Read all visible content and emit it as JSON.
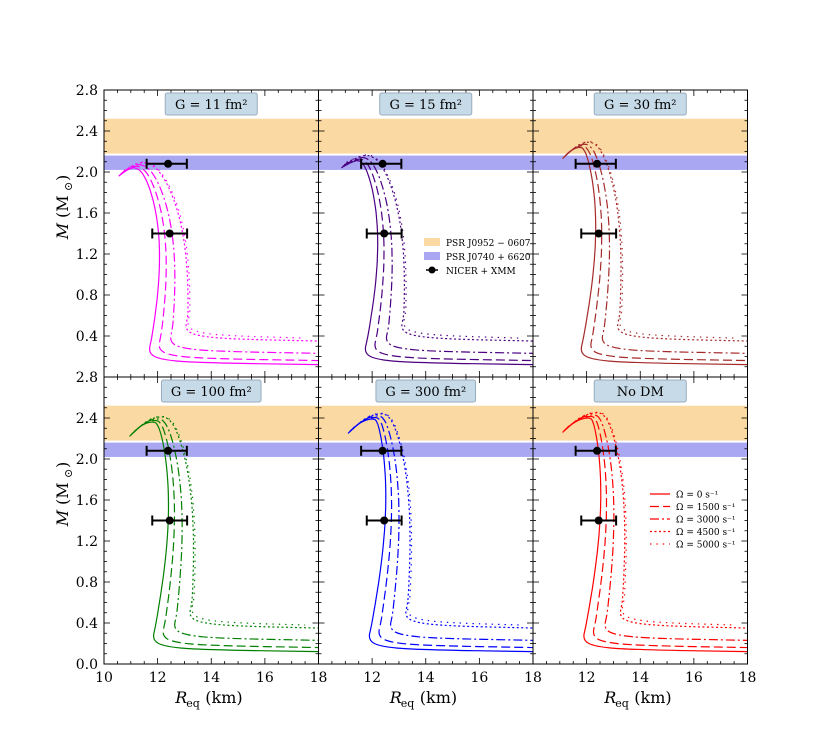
{
  "chart_data": {
    "type": "line",
    "xlim": [
      10,
      18
    ],
    "ylim": [
      0.0,
      2.8
    ],
    "xlabel": "R_eq (km)",
    "ylabel": "M (M_⊙)",
    "x_ticks": [
      10,
      12,
      14,
      16,
      18
    ],
    "y_ticks": [
      0.0,
      0.4,
      0.8,
      1.2,
      1.6,
      2.0,
      2.4,
      2.8
    ],
    "bands": [
      {
        "name": "PSR J0952 − 0607",
        "range": [
          2.18,
          2.52
        ],
        "color": "#fbd9a2"
      },
      {
        "name": "PSR J0740 + 6620",
        "range": [
          2.02,
          2.16
        ],
        "color": "#a9a7f2"
      }
    ],
    "nicer_points": [
      {
        "name": "NICER + XMM",
        "r": 12.39,
        "r_err": [
          0.8,
          0.7
        ],
        "m": 2.08
      },
      {
        "name": "NICER + XMM",
        "r": 12.45,
        "r_err": [
          0.65,
          0.65
        ],
        "m": 1.4
      }
    ],
    "legend_bands": [
      {
        "label": "PSR J0952 − 0607"
      },
      {
        "label": "PSR J0740 + 6620"
      },
      {
        "label": "NICER + XMM"
      }
    ],
    "legend_rotation": [
      {
        "label": "Ω = 0 s⁻¹",
        "omega": 0
      },
      {
        "label": "Ω = 1500 s⁻¹",
        "omega": 1500
      },
      {
        "label": "Ω = 3000 s⁻¹",
        "omega": 3000
      },
      {
        "label": "Ω = 4500 s⁻¹",
        "omega": 4500
      },
      {
        "label": "Ω = 5000 s⁻¹",
        "omega": 5000
      }
    ],
    "series_styles": [
      "solid",
      "dashed",
      "dashdot",
      "dotted",
      "sparse-dotted"
    ],
    "panels": [
      {
        "title": "G = 11 fm²",
        "color": "#ff00ff",
        "r_min": 10.55,
        "r_turn": 11.15,
        "r_surf": 12.3,
        "m_max": 2.05,
        "m_at_turn": 1.98
      },
      {
        "title": "G = 15 fm²",
        "color": "#4b0082",
        "r_min": 10.85,
        "r_turn": 11.5,
        "r_surf": 12.35,
        "m_max": 2.12,
        "m_at_turn": 2.06
      },
      {
        "title": "G = 30 fm²",
        "color": "#a52a2a",
        "r_min": 11.1,
        "r_turn": 11.8,
        "r_surf": 12.4,
        "m_max": 2.25,
        "m_at_turn": 2.15
      },
      {
        "title": "G = 100 fm²",
        "color": "#008000",
        "r_min": 10.95,
        "r_turn": 11.9,
        "r_surf": 12.45,
        "m_max": 2.37,
        "m_at_turn": 2.24
      },
      {
        "title": "G = 300 fm²",
        "color": "#0000ff",
        "r_min": 11.1,
        "r_turn": 12.1,
        "r_surf": 12.5,
        "m_max": 2.4,
        "m_at_turn": 2.27
      },
      {
        "title": "No DM",
        "color": "#ff0000",
        "r_min": 11.1,
        "r_turn": 12.15,
        "r_surf": 12.5,
        "m_max": 2.41,
        "m_at_turn": 2.28
      }
    ]
  }
}
